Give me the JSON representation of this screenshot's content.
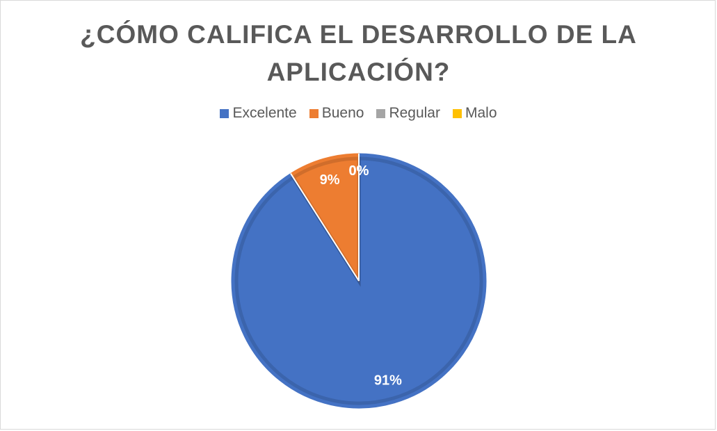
{
  "chart_data": {
    "type": "pie",
    "title_lines": [
      "¿CÓMO CALIFICA EL DESARROLLO DE LA",
      "APLICACIÓN?"
    ],
    "legend_position": "top",
    "categories": [
      "Excelente",
      "Bueno",
      "Regular",
      "Malo"
    ],
    "values": [
      91,
      9,
      0,
      0
    ],
    "data_labels": [
      "91%",
      "9%",
      "0%",
      "0%"
    ],
    "colors": [
      "#4472c4",
      "#ed7d31",
      "#a5a5a5",
      "#ffc000"
    ]
  }
}
